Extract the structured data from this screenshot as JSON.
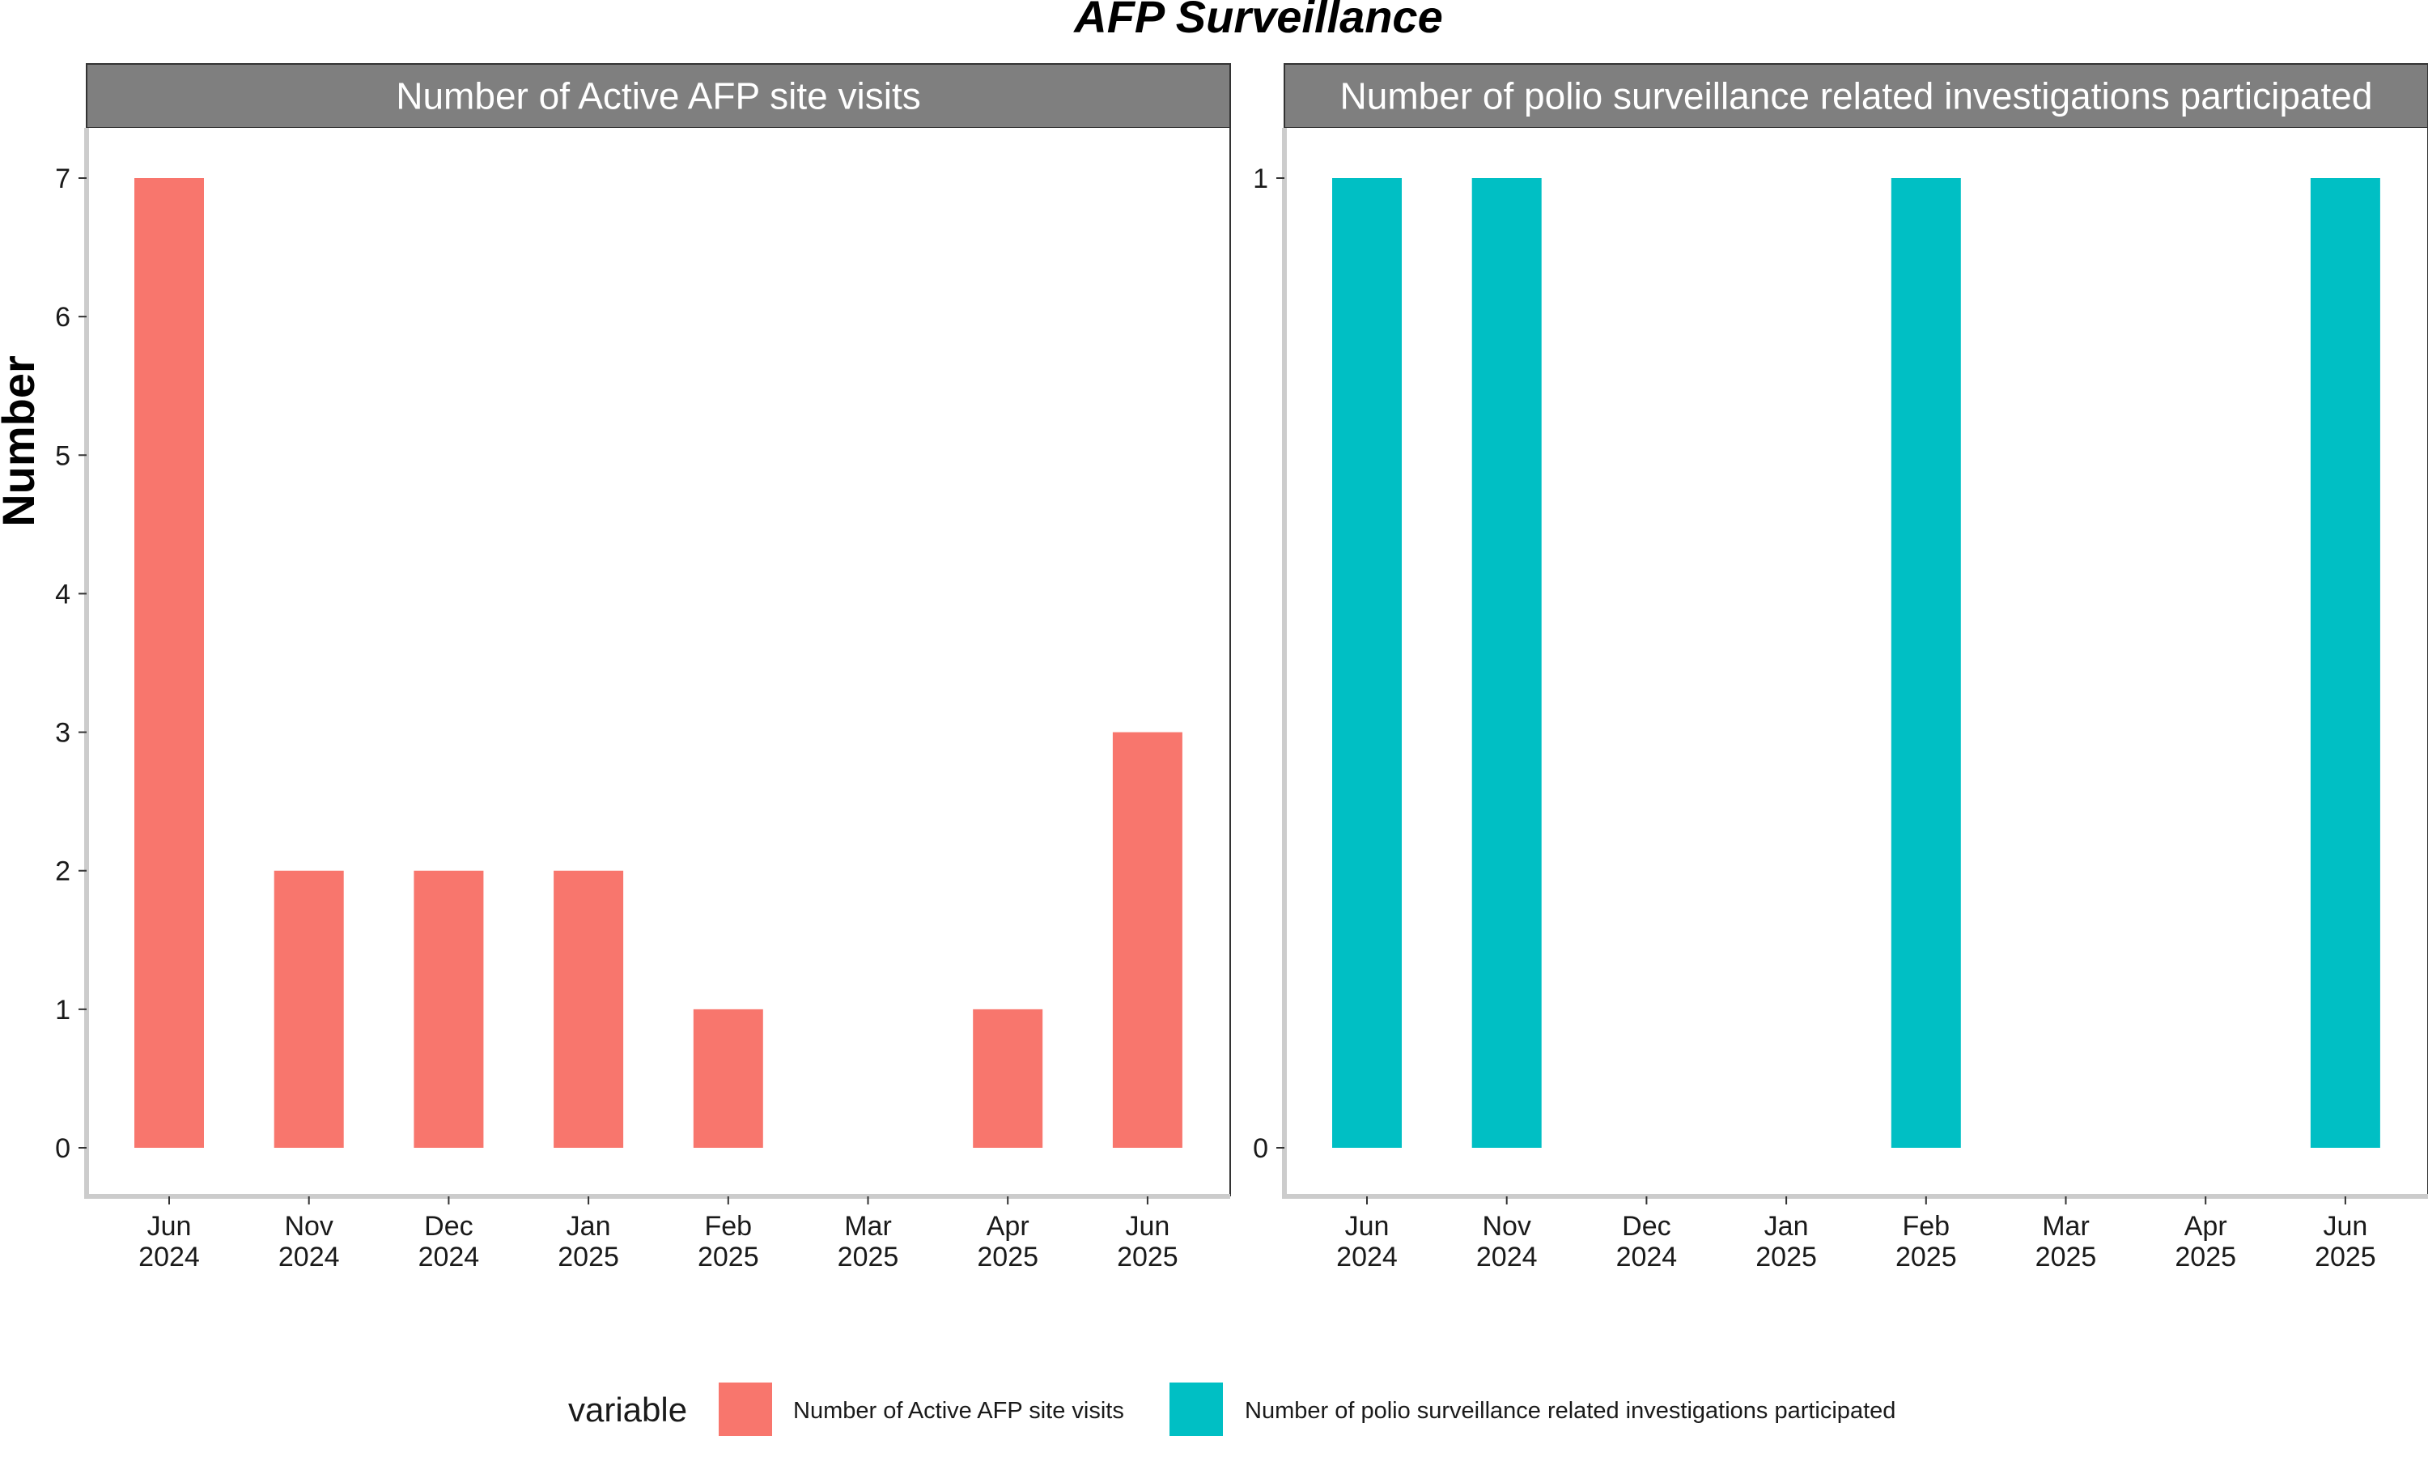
{
  "chart_data": {
    "type": "bar",
    "title": "AFP Surveillance",
    "ylabel": "Number",
    "xlabel": "",
    "categories": [
      [
        "Jun",
        "2024"
      ],
      [
        "Nov",
        "2024"
      ],
      [
        "Dec",
        "2024"
      ],
      [
        "Jan",
        "2025"
      ],
      [
        "Feb",
        "2025"
      ],
      [
        "Mar",
        "2025"
      ],
      [
        "Apr",
        "2025"
      ],
      [
        "Jun",
        "2025"
      ]
    ],
    "panels": [
      {
        "strip": "Number of Active AFP site visits",
        "color": "#F8766D",
        "ylim": [
          0,
          7
        ],
        "yticks": [
          0,
          1,
          2,
          3,
          4,
          5,
          6,
          7
        ],
        "values": [
          7,
          2,
          2,
          2,
          1,
          null,
          1,
          3
        ]
      },
      {
        "strip": "Number of polio surveillance related investigations participated",
        "color": "#00BFC4",
        "ylim": [
          0,
          1
        ],
        "yticks": [
          0,
          1
        ],
        "values": [
          1,
          1,
          null,
          null,
          1,
          null,
          null,
          1
        ]
      }
    ],
    "legend": {
      "title": "variable",
      "position": "bottom",
      "entries": [
        {
          "label": "Number of Active AFP site visits",
          "color": "#F8766D"
        },
        {
          "label": "Number of polio surveillance related investigations participated",
          "color": "#00BFC4"
        }
      ]
    },
    "grid": false
  }
}
